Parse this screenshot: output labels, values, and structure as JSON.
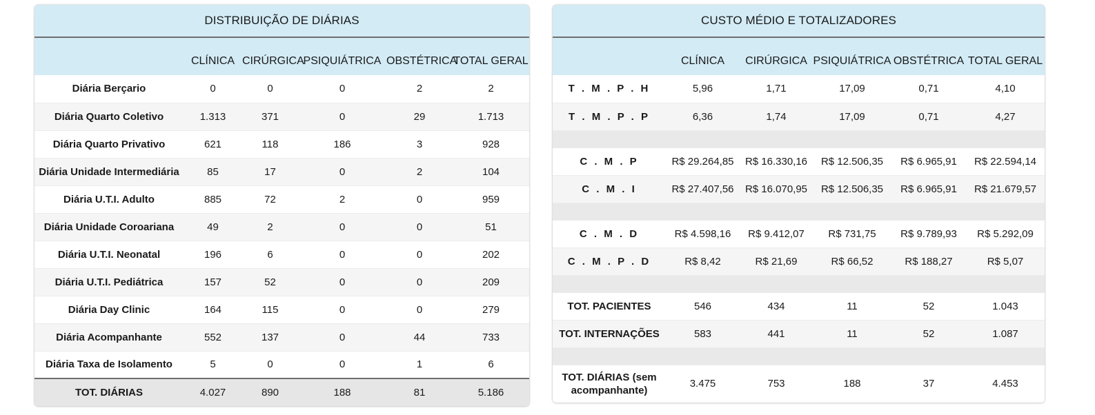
{
  "left": {
    "title": "DISTRIBUIÇÃO DE DIÁRIAS",
    "columns": [
      "",
      "CLÍNICA",
      "CIRÚRGICA",
      "PSIQUIÁTRICA",
      "OBSTÉTRICA",
      "TOTAL GERAL"
    ],
    "rows": [
      [
        "Diária Berçario",
        "0",
        "0",
        "0",
        "2",
        "2"
      ],
      [
        "Diária Quarto Coletivo",
        "1.313",
        "371",
        "0",
        "29",
        "1.713"
      ],
      [
        "Diária Quarto Privativo",
        "621",
        "118",
        "186",
        "3",
        "928"
      ],
      [
        "Diária Unidade Intermediária",
        "85",
        "17",
        "0",
        "2",
        "104"
      ],
      [
        "Diária U.T.I. Adulto",
        "885",
        "72",
        "2",
        "0",
        "959"
      ],
      [
        "Diária Unidade Coroariana",
        "49",
        "2",
        "0",
        "0",
        "51"
      ],
      [
        "Diária U.T.I. Neonatal",
        "196",
        "6",
        "0",
        "0",
        "202"
      ],
      [
        "Diária U.T.I. Pediátrica",
        "157",
        "52",
        "0",
        "0",
        "209"
      ],
      [
        "Diária Day Clinic",
        "164",
        "115",
        "0",
        "0",
        "279"
      ],
      [
        "Diária Acompanhante",
        "552",
        "137",
        "0",
        "44",
        "733"
      ],
      [
        "Diária Taxa de Isolamento",
        "5",
        "0",
        "0",
        "1",
        "6"
      ]
    ],
    "total": [
      "TOT. DIÁRIAS",
      "4.027",
      "890",
      "188",
      "81",
      "5.186"
    ]
  },
  "right": {
    "title": "CUSTO MÉDIO E TOTALIZADORES",
    "columns": [
      "",
      "CLÍNICA",
      "CIRÚRGICA",
      "PSIQUIÁTRICA",
      "OBSTÉTRICA",
      "TOTAL GERAL"
    ],
    "rows": [
      [
        "T . M . P . H",
        "5,96",
        "1,71",
        "17,09",
        "0,71",
        "4,10"
      ],
      [
        "T . M . P . P",
        "6,36",
        "1,74",
        "17,09",
        "0,71",
        "4,27"
      ],
      [
        "C . M . P",
        "R$ 29.264,85",
        "R$ 16.330,16",
        "R$ 12.506,35",
        "R$ 6.965,91",
        "R$ 22.594,14"
      ],
      [
        "C . M . I",
        "R$ 27.407,56",
        "R$ 16.070,95",
        "R$ 12.506,35",
        "R$ 6.965,91",
        "R$ 21.679,57"
      ],
      [
        "C . M . D",
        "R$ 4.598,16",
        "R$ 9.412,07",
        "R$ 731,75",
        "R$ 9.789,93",
        "R$ 5.292,09"
      ],
      [
        "C . M . P . D",
        "R$ 8,42",
        "R$ 21,69",
        "R$ 66,52",
        "R$ 188,27",
        "R$ 5,07"
      ],
      [
        "TOT. PACIENTES",
        "546",
        "434",
        "11",
        "52",
        "1.043"
      ],
      [
        "TOT. INTERNAÇÕES",
        "583",
        "441",
        "11",
        "52",
        "1.087"
      ],
      [
        "TOT. DIÁRIAS (sem acompanhante)",
        "3.475",
        "753",
        "188",
        "37",
        "4.453"
      ]
    ]
  }
}
